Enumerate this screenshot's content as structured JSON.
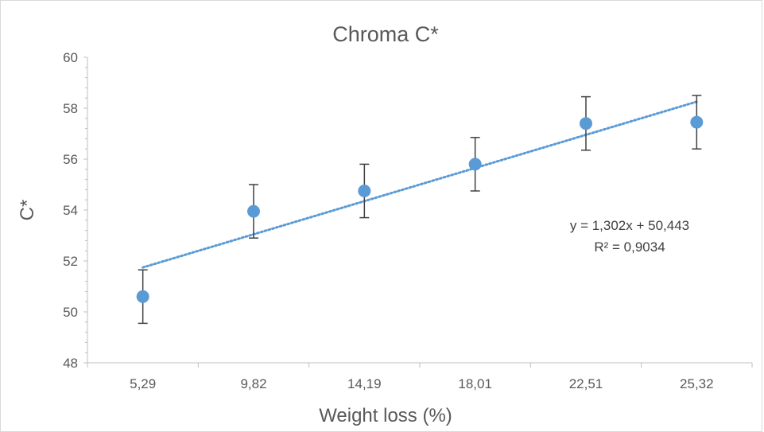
{
  "chart_data": {
    "type": "scatter",
    "title": "Chroma C*",
    "xlabel": "Weight loss (%)",
    "ylabel": "C*",
    "categories": [
      "5,29",
      "9,82",
      "14,19",
      "18,01",
      "22,51",
      "25,32"
    ],
    "values": [
      50.6,
      53.95,
      54.75,
      55.8,
      57.4,
      57.45
    ],
    "error": [
      1.05,
      1.05,
      1.05,
      1.05,
      1.05,
      1.05
    ],
    "ylim": [
      48,
      60
    ],
    "yticks": [
      "48",
      "50",
      "52",
      "54",
      "56",
      "58",
      "60"
    ],
    "trendline": {
      "type": "linear",
      "style": "dotted",
      "slope": 1.302,
      "intercept": 50.443,
      "equation": "y = 1,302x + 50,443",
      "r_squared": "R² = 0,9034"
    },
    "grid": false,
    "legend": "none",
    "colors": {
      "marker": "#5b9bd5",
      "trendline": "#5b9bd5",
      "error_bar": "#404040",
      "axis": "#bfbfbf",
      "text": "#595959"
    }
  }
}
